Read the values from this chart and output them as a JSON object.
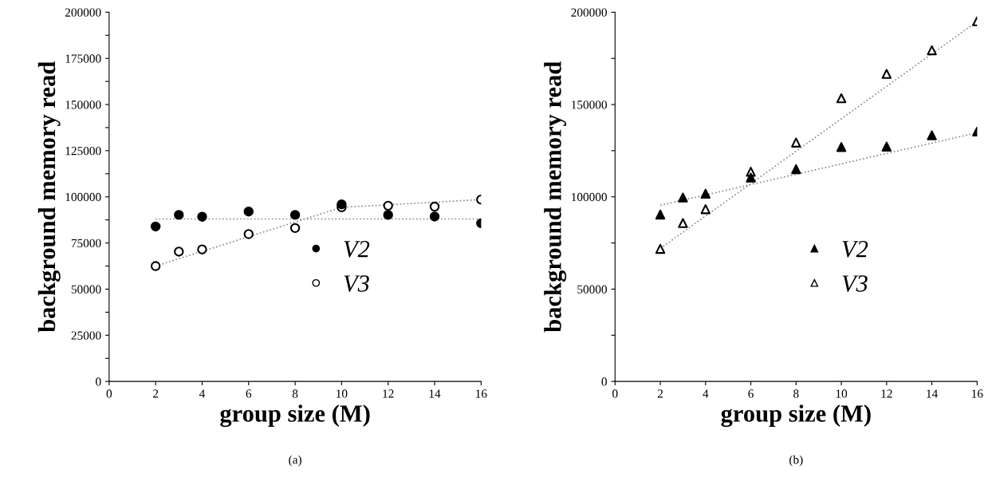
{
  "chart_data": [
    {
      "type": "scatter",
      "xlabel": "group size (M)",
      "ylabel": "background memory read",
      "annotations": [
        "(a)"
      ],
      "xlim": [
        0,
        16
      ],
      "xticks": [
        0,
        2,
        4,
        6,
        8,
        10,
        12,
        14,
        16
      ],
      "ylim": [
        0,
        200000
      ],
      "yticks": [
        0,
        {
          "value": 12500,
          "label": null
        },
        25000,
        {
          "value": 37500,
          "label": null
        },
        50000,
        {
          "value": 62500,
          "label": null
        },
        75000,
        {
          "value": 87500,
          "label": null
        },
        100000,
        {
          "value": 112500,
          "label": null
        },
        125000,
        {
          "value": 137500,
          "label": null
        },
        150000,
        {
          "value": 162500,
          "label": null
        },
        175000,
        {
          "value": 187500,
          "label": null
        },
        200000
      ],
      "legend": "bottom right",
      "grid": false,
      "series": [
        {
          "name": "V2",
          "color": "#000000",
          "marker": "circle",
          "x": [
            2,
            3,
            4,
            6,
            8,
            10,
            12,
            14,
            16
          ],
          "values": [
            83900,
            90200,
            89200,
            92000,
            90200,
            95900,
            90200,
            89300,
            85700
          ]
        },
        {
          "name": "V3",
          "color": "#ffffff",
          "marker": "circle",
          "x": [
            2,
            3,
            4,
            6,
            8,
            10,
            12,
            14,
            16
          ],
          "values": [
            62500,
            70300,
            71500,
            79800,
            83100,
            94300,
            95200,
            94700,
            98500
          ]
        },
        {
          "type": "line",
          "color": "#888888",
          "line_style": "dotted",
          "x": [
            2,
            16
          ],
          "values": [
            88000,
            88000
          ]
        },
        {
          "type": "line",
          "color": "#888888",
          "line_style": "dotted",
          "x": [
            2,
            10,
            16
          ],
          "values": [
            62500,
            94300,
            98500
          ]
        }
      ]
    },
    {
      "type": "scatter",
      "xlabel": "group size (M)",
      "ylabel": "background memory read",
      "annotations": [
        "(b)"
      ],
      "xlim": [
        0,
        16
      ],
      "xticks": [
        0,
        2,
        4,
        6,
        8,
        10,
        12,
        14,
        16
      ],
      "ylim": [
        0,
        200000
      ],
      "yticks": [
        0,
        {
          "value": 25000,
          "label": null
        },
        50000,
        {
          "value": 75000,
          "label": null
        },
        100000,
        {
          "value": 125000,
          "label": null
        },
        150000,
        {
          "value": 175000,
          "label": null
        },
        200000
      ],
      "legend": "bottom right",
      "grid": false,
      "series": [
        {
          "name": "V2",
          "color": "#000000",
          "marker": "triangle",
          "x": [
            2,
            3,
            4,
            6,
            8,
            10,
            12,
            14,
            16
          ],
          "values": [
            90400,
            99600,
            101700,
            110400,
            115000,
            127000,
            127200,
            133300,
            135400
          ]
        },
        {
          "name": "V3",
          "color": "#ffffff",
          "marker": "triangle",
          "x": [
            2,
            3,
            4,
            6,
            8,
            10,
            12,
            14,
            16
          ],
          "values": [
            71800,
            85800,
            93300,
            113600,
            129400,
            153400,
            166600,
            179400,
            195100
          ]
        },
        {
          "type": "line",
          "color": "#888888",
          "line_style": "dotted",
          "x": [
            2,
            16
          ],
          "values": [
            95400,
            134700
          ]
        },
        {
          "type": "line",
          "color": "#888888",
          "line_style": "dotted",
          "x": [
            2,
            16
          ],
          "values": [
            72000,
            195000
          ]
        }
      ]
    }
  ]
}
